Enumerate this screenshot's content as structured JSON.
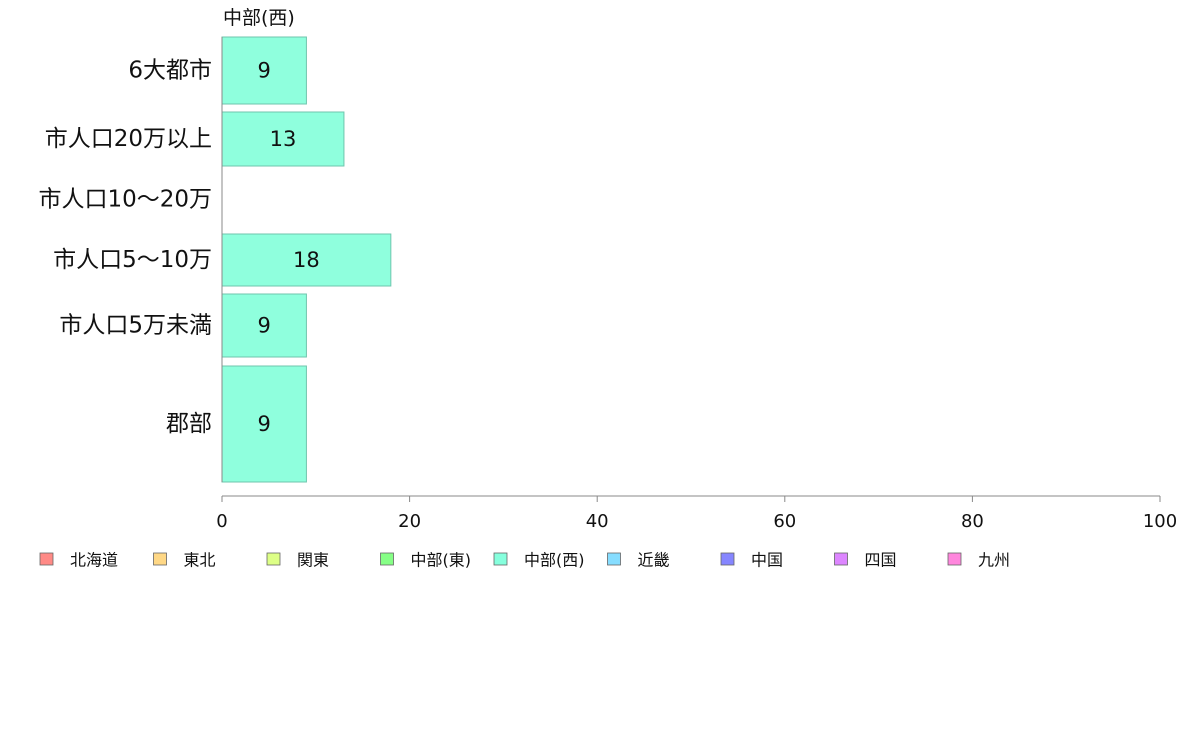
{
  "chart_data": {
    "type": "bar",
    "orientation": "horizontal",
    "title": "中部(西)",
    "categories": [
      "6大都市",
      "市人口20万以上",
      "市人口10〜20万",
      "市人口5〜10万",
      "市人口5万未満",
      "郡部"
    ],
    "values": [
      9,
      13,
      0,
      18,
      9,
      9
    ],
    "data_labels": [
      "9",
      "13",
      "",
      "18",
      "9",
      "9"
    ],
    "xlim": [
      0,
      100
    ],
    "xticks": [
      "0",
      "20",
      "40",
      "60",
      "80",
      "100"
    ],
    "xlabel": "",
    "ylabel": "",
    "grid": false,
    "bar_color": "#8fffdd",
    "bar_stroke": "#6fc5ad",
    "legend_position": "bottom",
    "legend": [
      {
        "label": "北海道",
        "color": "#ff8a86"
      },
      {
        "label": "東北",
        "color": "#ffd886"
      },
      {
        "label": "関東",
        "color": "#ddff86"
      },
      {
        "label": "中部(東)",
        "color": "#86ff86"
      },
      {
        "label": "中部(西)",
        "color": "#86ffdd"
      },
      {
        "label": "近畿",
        "color": "#86ddff"
      },
      {
        "label": "中国",
        "color": "#8686ff"
      },
      {
        "label": "四国",
        "color": "#dd86ff"
      },
      {
        "label": "九州",
        "color": "#ff86dd"
      }
    ]
  }
}
